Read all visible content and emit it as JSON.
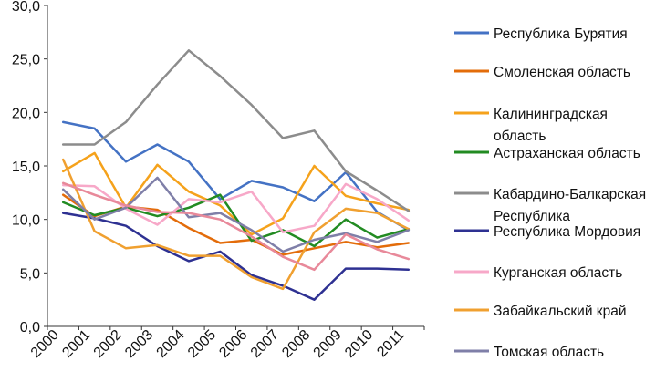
{
  "chart_data": {
    "type": "line",
    "title": "",
    "xlabel": "",
    "ylabel": "",
    "ylim": [
      0,
      30
    ],
    "y_ticks": [
      "0,0",
      "5,0",
      "10,0",
      "15,0",
      "20,0",
      "25,0",
      "30,0"
    ],
    "categories": [
      "2000",
      "2001",
      "2002",
      "2003",
      "2004",
      "2005",
      "2006",
      "2007",
      "2008",
      "2009",
      "2010",
      "2011"
    ],
    "grid": false,
    "legend_position": "right",
    "series": [
      {
        "name": "Республика Бурятия",
        "legend_lines": [
          "Республика Бурятия"
        ],
        "color": "#4472C4",
        "values": [
          19.1,
          18.5,
          15.4,
          17.0,
          15.4,
          11.9,
          13.6,
          13.0,
          11.7,
          14.4,
          10.7,
          9.0
        ]
      },
      {
        "name": "Смоленская область",
        "legend_lines": [
          "Смоленская область"
        ],
        "color": "#E36C0A",
        "values": [
          12.3,
          10.3,
          11.2,
          10.9,
          9.2,
          7.8,
          8.1,
          6.7,
          7.3,
          7.9,
          7.4,
          7.8
        ]
      },
      {
        "name": "Калининградская область",
        "legend_lines": [
          "Калининградская",
          "область"
        ],
        "color": "#F5A21B",
        "values": [
          14.5,
          16.2,
          11.1,
          15.1,
          12.6,
          11.3,
          8.6,
          10.1,
          15.0,
          12.2,
          11.5,
          10.9
        ]
      },
      {
        "name": "Астраханская область",
        "legend_lines": [
          "Астраханская область"
        ],
        "color": "#228B22",
        "values": [
          11.6,
          10.4,
          11.1,
          10.3,
          11.1,
          12.3,
          8.0,
          9.0,
          7.5,
          10.0,
          8.3,
          9.1
        ]
      },
      {
        "name": "Кабардино-Балкарская Республика",
        "legend_lines": [
          "Кабардино-Балкарская",
          "Республика"
        ],
        "color": "#8C8C8C",
        "values": [
          17.0,
          17.0,
          19.1,
          22.6,
          25.8,
          23.4,
          20.7,
          17.6,
          18.3,
          14.5,
          12.7,
          10.8
        ]
      },
      {
        "name": "Республика Мордовия",
        "legend_lines": [
          "Республика Мордовия"
        ],
        "color": "#2E3192",
        "values": [
          10.6,
          10.1,
          9.4,
          7.5,
          6.1,
          7.0,
          4.8,
          3.8,
          2.5,
          5.4,
          5.4,
          5.3
        ]
      },
      {
        "name": "Курганская область",
        "legend_lines": [
          "Курганская область"
        ],
        "color": "#F7A8C8",
        "values": [
          13.2,
          13.1,
          11.0,
          9.5,
          11.9,
          11.6,
          12.6,
          8.8,
          9.4,
          13.3,
          11.9,
          9.9
        ]
      },
      {
        "name": "Забайкальский край",
        "legend_lines": [
          "Забайкальский край"
        ],
        "color": "#F0A030",
        "values": [
          15.6,
          8.9,
          7.3,
          7.6,
          6.6,
          6.6,
          4.6,
          3.5,
          8.8,
          11.0,
          10.6,
          9.1
        ]
      },
      {
        "name": "Томская область",
        "legend_lines": [
          "Томская область"
        ],
        "color": "#7F7FA8",
        "values": [
          12.8,
          10.0,
          11.1,
          13.9,
          10.2,
          10.6,
          9.0,
          7.0,
          8.1,
          8.7,
          7.9,
          9.0
        ]
      },
      {
        "name": "",
        "legend_lines": [],
        "color": "#E8899A",
        "values": [
          13.4,
          12.3,
          11.3,
          10.7,
          10.6,
          10.0,
          8.4,
          6.5,
          5.3,
          8.6,
          7.2,
          6.3
        ]
      }
    ]
  }
}
